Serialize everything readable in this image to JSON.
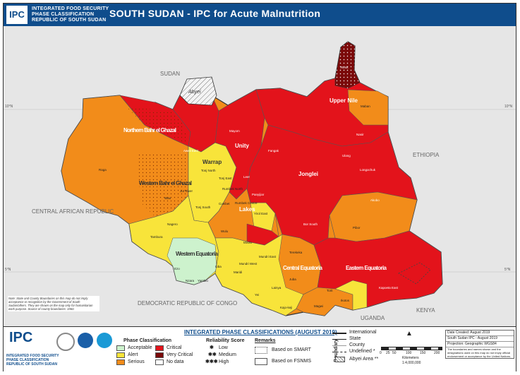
{
  "header": {
    "logo": "IPC",
    "org_line1": "INTEGRATED FOOD SECURITY",
    "org_line2": "PHASE CLASSIFICATION",
    "org_line3": "REPUBLIC OF SOUTH SUDAN",
    "title": "SOUTH SUDAN - IPC for Acute Malnutrition"
  },
  "colors": {
    "acceptable": "#cdf2cd",
    "alert": "#f8e43a",
    "serious": "#f28c1a",
    "critical": "#e3131b",
    "very_critical": "#7b0a0a",
    "no_data": "#ffffff",
    "neighbor": "#e3e3e3",
    "header_blue": "#0f4d8c"
  },
  "map": {
    "countries": {
      "sudan": "SUDAN",
      "ethiopia": "ETHIOPIA",
      "car": "CENTRAL AFRICAN REPUBLIC",
      "drc": "DEMOCRATIC REPUBLIC OF CONGO",
      "uganda": "UGANDA",
      "kenya": "KENYA"
    },
    "abyei": "Abyei",
    "states": {
      "nbg": "Northern Bahr el Ghazal",
      "wbg": "Western Bahr el Ghazal",
      "warrap": "Warrap",
      "unity": "Unity",
      "upper_nile": "Upper Nile",
      "jonglei": "Jonglei",
      "lakes": "Lakes",
      "we": "Western Equatoria",
      "ce": "Central Equatoria",
      "ee": "Eastern Equatoria"
    },
    "counties": {
      "raga": "Raga",
      "wau": "Wau",
      "jur_river": "Jur River",
      "aweil_east": "Aweil East",
      "tonj_north": "Tonj North",
      "tonj_east": "Tonj East",
      "tonj_south": "Tonj South",
      "rumbek_north": "Rumbek North",
      "rumbek_centre": "Rumbek Centre",
      "cueibet": "Cueibet",
      "wulu": "Wulu",
      "yirol_east": "Yirol East",
      "nagero": "Nagero",
      "tambura": "Tambura",
      "ezo": "Ezo",
      "ibba": "Ibba",
      "maridi": "Maridi",
      "mvolo": "Mvolo",
      "mundri_east": "Mundri East",
      "mundri_west": "Mundri West",
      "nzara": "Nzara",
      "yambio": "Yambio",
      "yei": "Yei",
      "lainya": "Lainya",
      "juba": "Juba",
      "terekeka": "Terekeka",
      "kajo_keji": "Kajo-keji",
      "magwi": "Magwi",
      "torit": "Torit",
      "ikotos": "Ikotos",
      "kapoeta_east": "Kapoeta East",
      "pibor": "Pibor",
      "akobo": "Akobo",
      "nasir": "Nasir",
      "maban": "Maban",
      "renk": "Renk",
      "bor_south": "Bor South",
      "fangak": "Fangak",
      "mayom": "Mayom",
      "leer": "Leer",
      "panyijiar": "Panyijiar",
      "ulang": "Ulang",
      "longochuk": "Longochuk"
    },
    "coords": {
      "n10": "10°N",
      "n5": "5°N",
      "n10r": "10°N",
      "n5r": "5°N"
    },
    "note": "Note: State and County Boundaries on this map do not imply acceptance or recognition by the Government of South Sudan/others. They are shown on the map only for humanitarian work purpose. Source of county boundaries: 1960."
  },
  "legend": {
    "header": "INTEGRATED PHASE CLASSIFICATIONS (AUGUST 2019)",
    "ipc_small_line1": "INTEGRATED FOOD SECURITY",
    "ipc_small_line2": "PHASE CLASSIFICATION",
    "ipc_small_line3": "REPUBLIC OF SOUTH SUDAN",
    "phase_title": "Phase Classification",
    "acceptable": "Acceptable",
    "alert": "Alert",
    "serious": "Serious",
    "critical": "Critical",
    "very_critical": "Very Critical",
    "no_data": "No data",
    "reliability_title": "Reliability Score",
    "low": "Low",
    "medium": "Medium",
    "high": "High",
    "remarks_title": "Remarks",
    "smart": "Based on SMART",
    "fsnms": "Based on FSNMS",
    "boundary_label": "Boundary",
    "international": "International",
    "state": "State",
    "county": "County",
    "undefined": "Undefined *",
    "abyei_area": "Abyei Area **",
    "scale_ticks": [
      "0",
      "25",
      "50",
      "100",
      "150",
      "200"
    ],
    "scale_unit": "Kilometers",
    "scale_ratio": "1:4,000,000",
    "meta_line1": "Date Created: August 2019",
    "meta_line2": "South Sudan IPC - August 2019",
    "meta_line3": "Projection: Geographic WGS84",
    "meta_line4": "The boundaries and names shown and the designations used on this map do not imply official endorsement or acceptance by the United Nations."
  }
}
